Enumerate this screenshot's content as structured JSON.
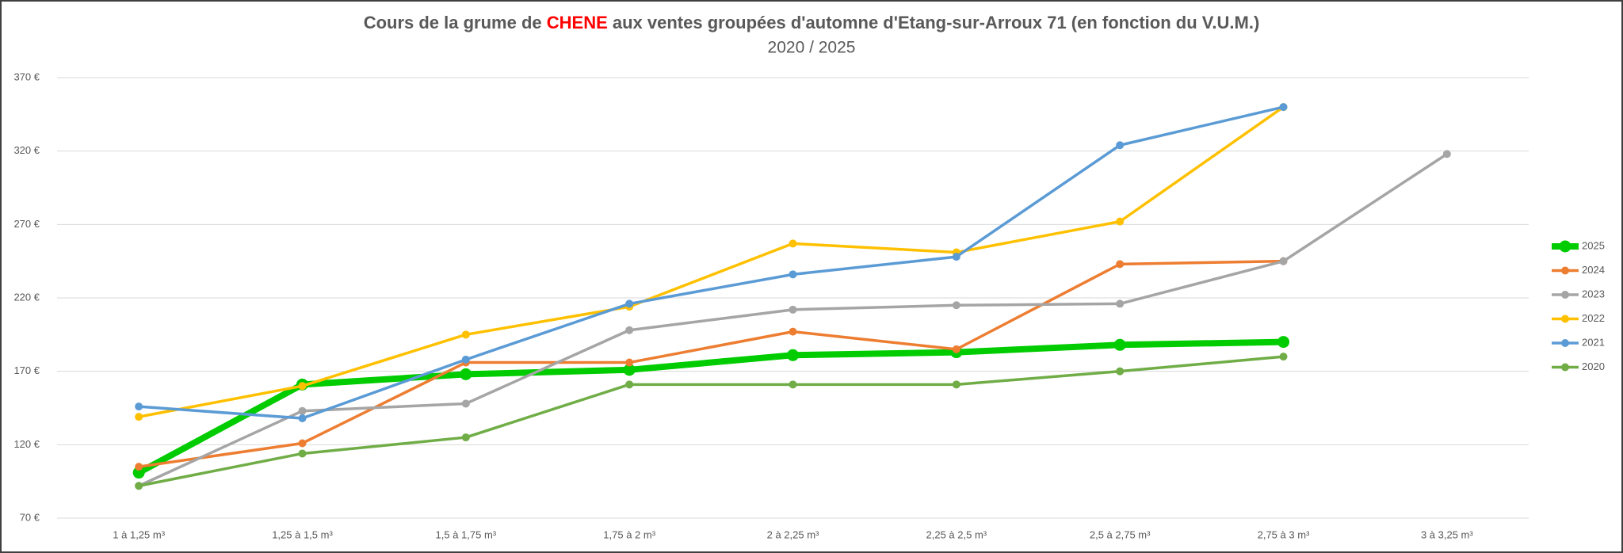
{
  "chart_data": {
    "type": "line",
    "title": {
      "before": "Cours de la grume de ",
      "highlight": "CHENE",
      "after": " aux ventes groupées d'automne d'Etang-sur-Arroux 71 (en fonction du V.U.M.)",
      "highlight_color": "#ff0000"
    },
    "subtitle": "2020 / 2025",
    "categories": [
      "1 à 1,25 m³",
      "1,25 à 1,5 m³",
      "1,5 à 1,75 m³",
      "1,75 à 2 m³",
      "2 à 2,25 m³",
      "2,25 à 2,5 m³",
      "2,5 à 2,75 m³",
      "2,75 à 3 m³",
      "3 à 3,25 m³"
    ],
    "series": [
      {
        "name": "2025",
        "color": "#00cc00",
        "emphasized": true,
        "values": [
          101,
          161,
          168,
          171,
          181,
          183,
          188,
          190,
          null
        ]
      },
      {
        "name": "2024",
        "color": "#ed7d31",
        "values": [
          105,
          121,
          176,
          176,
          197,
          185,
          243,
          245,
          null
        ]
      },
      {
        "name": "2023",
        "color": "#a5a5a5",
        "values": [
          92,
          143,
          148,
          198,
          212,
          215,
          216,
          245,
          318
        ]
      },
      {
        "name": "2022",
        "color": "#ffc000",
        "values": [
          139,
          160,
          195,
          214,
          257,
          251,
          272,
          350,
          null
        ]
      },
      {
        "name": "2021",
        "color": "#5b9bd5",
        "values": [
          146,
          138,
          178,
          216,
          236,
          248,
          324,
          350,
          null
        ]
      },
      {
        "name": "2020",
        "color": "#70ad47",
        "values": [
          92,
          114,
          125,
          161,
          161,
          161,
          170,
          180,
          null
        ]
      }
    ],
    "ylim": [
      70,
      370
    ],
    "yticks": [
      {
        "value": 70,
        "label": "70 €"
      },
      {
        "value": 120,
        "label": "120 €"
      },
      {
        "value": 170,
        "label": "170 €"
      },
      {
        "value": 220,
        "label": "220 €"
      },
      {
        "value": 270,
        "label": "270 €"
      },
      {
        "value": 320,
        "label": "320 €"
      },
      {
        "value": 370,
        "label": "370 €"
      }
    ],
    "grid": true,
    "legend": "right"
  }
}
